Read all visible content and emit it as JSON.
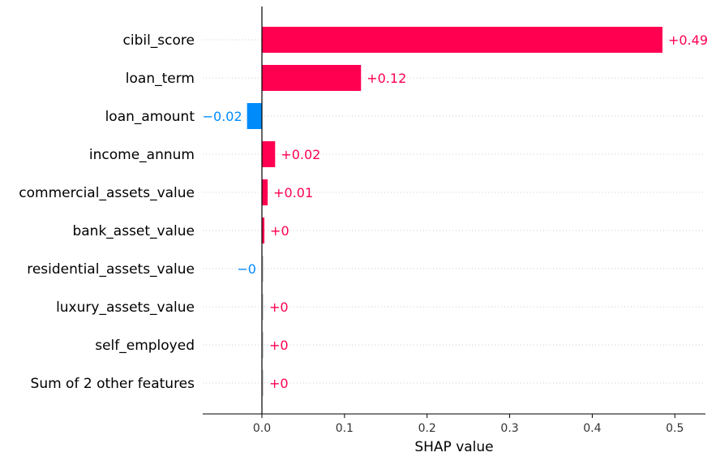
{
  "chart_data": {
    "type": "bar",
    "orientation": "horizontal",
    "categories": [
      "cibil_score",
      "loan_term",
      "loan_amount",
      "income_annum",
      "commercial_assets_value",
      "bank_asset_value",
      "residential_assets_value",
      "luxury_assets_value",
      "self_employed",
      "Sum of 2 other features"
    ],
    "values": [
      0.485,
      0.12,
      -0.018,
      0.016,
      0.007,
      0.003,
      -0.001,
      0.001,
      0.001,
      0.001
    ],
    "value_labels": [
      "+0.49",
      "+0.12",
      "−0.02",
      "+0.02",
      "+0.01",
      "+0",
      "−0",
      "+0",
      "+0",
      "+0"
    ],
    "xlabel": "SHAP value",
    "ylabel": "",
    "xlim": [
      -0.072,
      0.535
    ],
    "xticks": [
      0.0,
      0.1,
      0.2,
      0.3,
      0.4,
      0.5
    ],
    "xtick_labels": [
      "0.0",
      "0.1",
      "0.2",
      "0.3",
      "0.4",
      "0.5"
    ],
    "grid": "dotted horizontal row guides",
    "colors": {
      "positive": "#ff0051",
      "negative": "#008bfb",
      "faded": "#cccccc",
      "axis": "#000000",
      "grid": "#cccccc"
    }
  }
}
